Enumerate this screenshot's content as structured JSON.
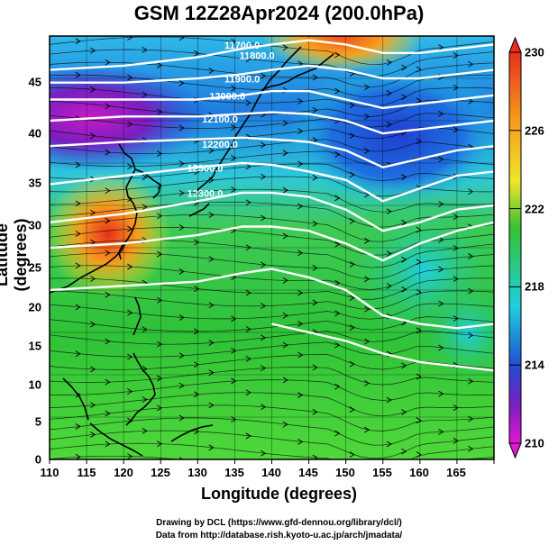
{
  "title": "GSM 12Z28Apr2024 (200.0hPa)",
  "xlabel": "Longitude (degrees)",
  "ylabel": "Latitude  (degrees)",
  "credit_line1": "Drawing by DCL (https://www.gfd-dennou.org/library/dcl/)",
  "credit_line2": "Data from http://database.rish.kyoto-u.ac.jp/arch/jmadata/",
  "colorbar": {
    "ticks": [
      "230",
      "226",
      "222",
      "218",
      "214",
      "210"
    ],
    "min": 210,
    "max": 230
  },
  "colors": {
    "warm": "#e8301c",
    "orange": "#f59a1e",
    "yellow": "#f0e62a",
    "green": "#35c231",
    "cyan": "#1fcfe0",
    "blue": "#1f4fd6",
    "purple": "#7a1fbf",
    "magenta": "#e017d0"
  },
  "chart_data": {
    "type": "heatmap",
    "title": "GSM 12Z28Apr2024 (200.0hPa)",
    "xlabel": "Longitude (degrees)",
    "ylabel": "Latitude  (degrees)",
    "xlim": [
      110,
      170
    ],
    "ylim": [
      0,
      50
    ],
    "xticks": [
      "110",
      "115",
      "120",
      "125",
      "130",
      "135",
      "140",
      "145",
      "150",
      "155",
      "160",
      "165"
    ],
    "yticks": [
      "45",
      "40",
      "35",
      "30",
      "25",
      "20",
      "15",
      "10",
      "5",
      "0"
    ],
    "colorbar_range": [
      210,
      230
    ],
    "field": "temperature (K) at 200 hPa with geopotential height contours and streamlines",
    "contour_labels": [
      "11700.0",
      "11800.0",
      "11900.0",
      "12000.0",
      "12100.0",
      "12200.0",
      "12300.0",
      "12300.0"
    ],
    "contours": [
      {
        "level": "11700.0",
        "lon": [
          110,
          120,
          130,
          136,
          140,
          145,
          150,
          155,
          160,
          165,
          170
        ],
        "lat": [
          46,
          46.5,
          47.5,
          48.5,
          49,
          49.5,
          49,
          48,
          48,
          48.5,
          49
        ]
      },
      {
        "level": "11800.0",
        "lon": [
          110,
          120,
          130,
          136,
          140,
          145,
          150,
          155,
          160,
          165,
          170
        ],
        "lat": [
          44.5,
          44.5,
          45,
          45.5,
          46,
          46.5,
          46,
          45,
          45,
          45.5,
          46
        ]
      },
      {
        "level": "11900.0",
        "lon": [
          110,
          120,
          130,
          136,
          140,
          145,
          150,
          155,
          160,
          165,
          170
        ],
        "lat": [
          42.5,
          42.5,
          42.5,
          43,
          43.5,
          43.5,
          42.5,
          41.5,
          42,
          42.5,
          43
        ]
      },
      {
        "level": "12000.0",
        "lon": [
          110,
          120,
          130,
          136,
          140,
          145,
          150,
          155,
          160,
          165,
          170
        ],
        "lat": [
          40,
          40.5,
          40.5,
          40.8,
          41,
          40.8,
          40,
          38.5,
          39,
          39.5,
          40
        ]
      },
      {
        "level": "12100.0",
        "lon": [
          110,
          120,
          130,
          136,
          140,
          145,
          150,
          155,
          160,
          165,
          170
        ],
        "lat": [
          37,
          37.5,
          37.8,
          38,
          37.8,
          37.5,
          36.5,
          34.5,
          35.5,
          36.5,
          37
        ]
      },
      {
        "level": "12200.0",
        "lon": [
          110,
          120,
          130,
          136,
          140,
          145,
          150,
          155,
          160,
          165,
          170
        ],
        "lat": [
          32.5,
          33.5,
          34.5,
          35,
          34.8,
          34,
          33,
          30.5,
          32,
          33.5,
          34
        ]
      },
      {
        "level": "12300.0",
        "lon": [
          110,
          120,
          130,
          136,
          140,
          145,
          150,
          155,
          160,
          165,
          170
        ],
        "lat": [
          28,
          29,
          30.5,
          31.5,
          31.5,
          31,
          29.5,
          27,
          28,
          29.5,
          30
        ]
      },
      {
        "level": "12300.0",
        "lon": [
          110,
          120,
          130,
          136,
          140,
          145,
          150,
          155,
          160,
          165,
          170
        ],
        "lat": [
          25,
          25.5,
          26.5,
          27.5,
          27.5,
          27,
          25.5,
          23.5,
          25.5,
          27,
          28
        ]
      },
      {
        "level": "12300.0",
        "lon": [
          110,
          120,
          130,
          136,
          140,
          145,
          150,
          155,
          160,
          165,
          170
        ],
        "lat": [
          20,
          20.5,
          21,
          22,
          22.5,
          21.5,
          20,
          17,
          16,
          15.5,
          16
        ]
      },
      {
        "level": "12300.0",
        "lon": [
          140,
          145,
          150,
          155,
          160,
          165,
          170
        ],
        "lat": [
          16,
          15,
          14,
          12.5,
          11.5,
          11,
          10.5
        ]
      }
    ]
  }
}
